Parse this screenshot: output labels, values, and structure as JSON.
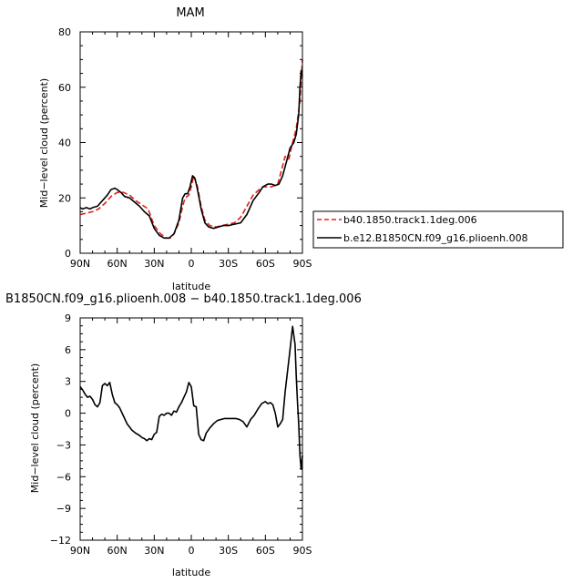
{
  "chart_data": [
    {
      "type": "line",
      "title": "MAM",
      "xlabel": "latitude",
      "ylabel": "Mid−level cloud (percent)",
      "xlim": [
        90,
        -90
      ],
      "ylim": [
        0,
        80
      ],
      "x_ticks": [
        90,
        60,
        30,
        0,
        -30,
        -60,
        -90
      ],
      "x_tick_labels": [
        "90N",
        "60N",
        "30N",
        "0",
        "30S",
        "60S",
        "90S"
      ],
      "y_ticks": [
        0,
        20,
        40,
        60,
        80
      ],
      "y_tick_labels": [
        "0",
        "20",
        "40",
        "60",
        "80"
      ],
      "legend": {
        "placement": "right",
        "entries": [
          "b40.1850.track1.1deg.006",
          "b.e12.B1850CN.f09_g16.plioenh.008"
        ]
      },
      "series": [
        {
          "name": "b40.1850.track1.1deg.006",
          "color": "#e0201b",
          "dash": "dashed",
          "x": [
            90,
            85,
            80,
            75,
            70,
            65,
            60,
            55,
            50,
            45,
            40,
            35,
            30,
            25,
            20,
            17,
            14,
            10,
            7,
            5,
            2,
            0,
            -2,
            -5,
            -8,
            -11,
            -15,
            -20,
            -25,
            -30,
            -35,
            -40,
            -45,
            -50,
            -55,
            -58,
            -62,
            -65,
            -70,
            -73,
            -76,
            -79,
            -82,
            -85,
            -88,
            -90
          ],
          "y": [
            14,
            14.5,
            15,
            16,
            18,
            20.5,
            22,
            22,
            21,
            19,
            17.5,
            16,
            10,
            7,
            5.5,
            5.5,
            7,
            11,
            17,
            20,
            21,
            24,
            28,
            24,
            17,
            12,
            10,
            9.5,
            10,
            10.5,
            11,
            13,
            17,
            21,
            23,
            24,
            24,
            24,
            25,
            30,
            35,
            34,
            40,
            45,
            55,
            70
          ]
        },
        {
          "name": "b.e12.B1850CN.f09_g16.plioenh.008",
          "color": "#000000",
          "dash": "solid",
          "x": [
            90,
            88,
            85,
            82,
            80,
            76,
            72,
            68,
            65,
            62,
            60,
            57,
            54,
            50,
            46,
            42,
            38,
            34,
            30,
            26,
            22,
            18,
            14,
            10,
            7,
            5,
            3,
            1,
            -1,
            -3,
            -5,
            -8,
            -11,
            -14,
            -18,
            -22,
            -26,
            -30,
            -35,
            -40,
            -45,
            -50,
            -55,
            -58,
            -62,
            -65,
            -68,
            -71,
            -74,
            -77,
            -80,
            -83,
            -85,
            -87,
            -88,
            -89,
            -90
          ],
          "y": [
            16.5,
            16,
            16.5,
            16,
            16.5,
            17,
            19,
            21,
            23,
            23.5,
            23,
            22,
            20.5,
            20,
            18.5,
            17,
            15,
            13.5,
            9,
            6.5,
            5.5,
            5.5,
            7,
            12,
            20,
            21.5,
            21.5,
            24,
            28,
            27,
            23,
            16,
            11,
            9.5,
            9,
            9.5,
            10,
            10,
            10.5,
            11,
            14,
            19,
            22,
            24,
            25,
            25,
            24.5,
            25,
            28,
            33,
            38,
            40,
            43,
            50,
            60,
            66,
            64
          ]
        }
      ]
    },
    {
      "type": "line",
      "title": "B1850CN.f09_g16.plioenh.008 − b40.1850.track1.1deg.006",
      "xlabel": "latitude",
      "ylabel": "Mid−level cloud (percent)",
      "xlim": [
        90,
        -90
      ],
      "ylim": [
        -12,
        9
      ],
      "x_ticks": [
        90,
        60,
        30,
        0,
        -30,
        -60,
        -90
      ],
      "x_tick_labels": [
        "90N",
        "60N",
        "30N",
        "0",
        "30S",
        "60S",
        "90S"
      ],
      "y_ticks": [
        -12,
        -9,
        -6,
        -3,
        0,
        3,
        6,
        9
      ],
      "y_tick_labels": [
        "−12",
        "−9",
        "−6",
        "−3",
        "0",
        "3",
        "6",
        "9"
      ],
      "series": [
        {
          "color": "#000000",
          "dash": "solid",
          "x": [
            90,
            88,
            86,
            84,
            82,
            80,
            78,
            76,
            74,
            72,
            70,
            68,
            66,
            64,
            62,
            60,
            58,
            56,
            54,
            52,
            50,
            48,
            45,
            42,
            40,
            38,
            36,
            34,
            32,
            30,
            28,
            26,
            24,
            22,
            20,
            18,
            16,
            14,
            12,
            10,
            8,
            6,
            4,
            2,
            0,
            -2,
            -4,
            -6,
            -8,
            -10,
            -12,
            -15,
            -18,
            -21,
            -24,
            -27,
            -30,
            -33,
            -36,
            -39,
            -42,
            -45,
            -48,
            -51,
            -54,
            -57,
            -60,
            -62,
            -64,
            -66,
            -68,
            -70,
            -72,
            -74,
            -76,
            -78,
            -80,
            -82,
            -84,
            -85,
            -86,
            -87,
            -88,
            -89,
            -90
          ],
          "y": [
            2.5,
            2.2,
            1.8,
            1.5,
            1.6,
            1.3,
            0.8,
            0.6,
            1.0,
            2.6,
            2.8,
            2.6,
            2.9,
            1.8,
            1.0,
            0.8,
            0.5,
            0.0,
            -0.5,
            -1.0,
            -1.3,
            -1.6,
            -1.9,
            -2.1,
            -2.3,
            -2.4,
            -2.6,
            -2.4,
            -2.5,
            -2.0,
            -1.8,
            -0.3,
            -0.1,
            -0.2,
            0.0,
            0.0,
            -0.2,
            0.2,
            0.1,
            0.6,
            1.0,
            1.5,
            2.0,
            2.9,
            2.5,
            0.7,
            0.6,
            -2.0,
            -2.5,
            -2.6,
            -1.9,
            -1.4,
            -1.0,
            -0.7,
            -0.6,
            -0.5,
            -0.5,
            -0.5,
            -0.5,
            -0.6,
            -0.8,
            -1.3,
            -0.6,
            -0.2,
            0.4,
            0.9,
            1.1,
            0.9,
            1.0,
            0.8,
            0.0,
            -1.3,
            -1.0,
            -0.6,
            2.0,
            4.0,
            6.0,
            8.2,
            6.5,
            3.5,
            1.0,
            -1.0,
            -4.0,
            -5.3,
            -4.0
          ]
        }
      ]
    }
  ]
}
